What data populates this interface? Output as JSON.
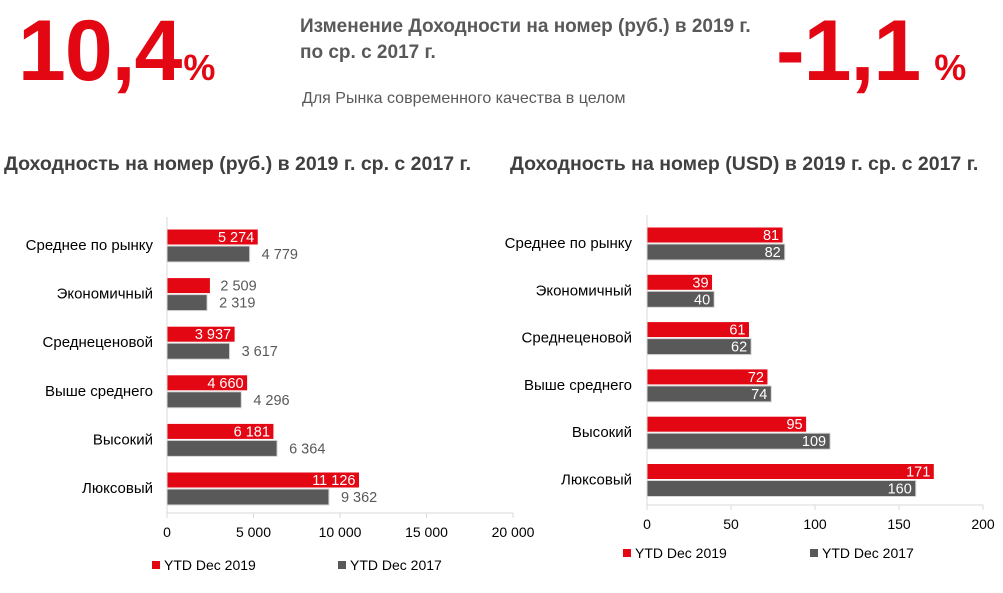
{
  "header": {
    "left_value": "10,4",
    "left_unit": "%",
    "headline": "Изменение Доходности на номер (руб.) в 2019 г. по ср. с 2017 г.",
    "subheadline": "Для Рынка современного качества в целом",
    "right_value": "-1,1",
    "right_unit": "%"
  },
  "colors": {
    "series_2019": "#e30613",
    "series_2017": "#595959",
    "accent": "#e30613"
  },
  "chart_data": [
    {
      "type": "bar",
      "orientation": "horizontal",
      "title": "Доходность на номер (руб.) в 2019 г. ср. с 2017 г.",
      "categories": [
        "Среднее по рынку",
        "Экономичный",
        "Среднеценовой",
        "Выше среднего",
        "Высокий",
        "Люксовый"
      ],
      "series": [
        {
          "name": "YTD Dec 2019",
          "values": [
            5274,
            2509,
            3937,
            4660,
            6181,
            11126
          ],
          "labels": [
            "5 274",
            "2 509",
            "3 937",
            "4 660",
            "6 181",
            "11 126"
          ],
          "label_inside": [
            true,
            false,
            true,
            true,
            true,
            true
          ]
        },
        {
          "name": "YTD Dec 2017",
          "values": [
            4779,
            2319,
            3617,
            4296,
            6364,
            9362
          ],
          "labels": [
            "4 779",
            "2 319",
            "3 617",
            "4 296",
            "6 364",
            "9 362"
          ],
          "label_inside": [
            false,
            false,
            false,
            false,
            false,
            false
          ]
        }
      ],
      "xlim": [
        0,
        20000
      ],
      "xticks": [
        0,
        5000,
        10000,
        15000,
        20000
      ],
      "xtick_labels": [
        "0",
        "5 000",
        "10 000",
        "15 000",
        "20 000"
      ],
      "grid": false,
      "legend": "bottom"
    },
    {
      "type": "bar",
      "orientation": "horizontal",
      "title": "Доходность на номер (USD) в 2019 г. ср. с 2017 г.",
      "categories": [
        "Среднее по рынку",
        "Экономичный",
        "Среднеценовой",
        "Выше среднего",
        "Высокий",
        "Люксовый"
      ],
      "series": [
        {
          "name": "YTD Dec 2019",
          "values": [
            81,
            39,
            61,
            72,
            95,
            171
          ],
          "labels": [
            "81",
            "39",
            "61",
            "72",
            "95",
            "171"
          ],
          "label_inside": [
            true,
            true,
            true,
            true,
            true,
            true
          ]
        },
        {
          "name": "YTD Dec 2017",
          "values": [
            82,
            40,
            62,
            74,
            109,
            160
          ],
          "labels": [
            "82",
            "40",
            "62",
            "74",
            "109",
            "160"
          ],
          "label_inside": [
            true,
            true,
            true,
            true,
            true,
            true
          ]
        }
      ],
      "xlim": [
        0,
        200
      ],
      "xticks": [
        0,
        50,
        100,
        150,
        200
      ],
      "xtick_labels": [
        "0",
        "50",
        "100",
        "150",
        "200"
      ],
      "grid": false,
      "legend": "bottom"
    }
  ]
}
